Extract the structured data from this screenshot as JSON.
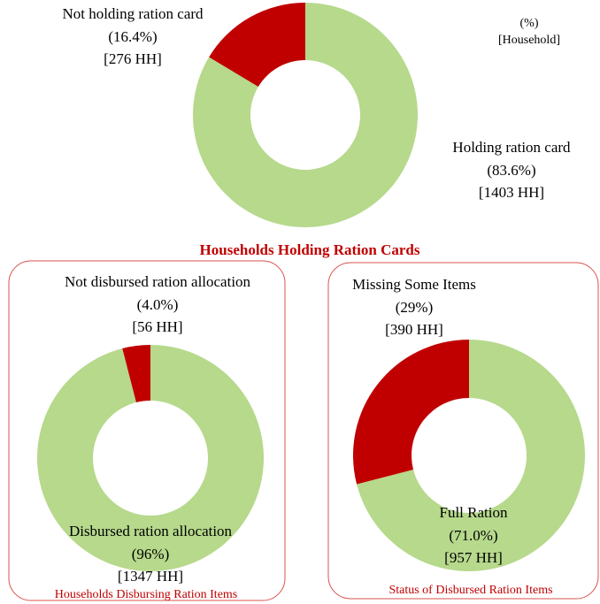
{
  "chart_data": [
    {
      "type": "donut",
      "title": "Households Holding Ration Cards",
      "unit_labels": [
        "(%)",
        "[Household]"
      ],
      "categories": [
        "Not holding ration card",
        "Holding ration card"
      ],
      "values": [
        16.4,
        83.6
      ],
      "value_labels": [
        "(16.4%)",
        "(83.6%)"
      ],
      "hh_labels": [
        "[276 HH]",
        "[1403 HH]"
      ],
      "colors": [
        "#c00000",
        "#b6d98c"
      ]
    },
    {
      "type": "donut",
      "title": "Households Disbursing Ration Items",
      "categories": [
        "Not disbursed ration allocation",
        "Disbursed ration allocation"
      ],
      "values": [
        4.0,
        96
      ],
      "value_labels": [
        "(4.0%)",
        "(96%)"
      ],
      "hh_labels": [
        "[56 HH]",
        "[1347 HH]"
      ],
      "colors": [
        "#c00000",
        "#b6d98c"
      ]
    },
    {
      "type": "donut",
      "title": "Status of Disbursed Ration Items",
      "categories": [
        "Missing Some Items",
        "Full Ration"
      ],
      "values": [
        29,
        71.0
      ],
      "value_labels": [
        "(29%)",
        "(71.0%)"
      ],
      "hh_labels": [
        "[390 HH]",
        "[957 HH]"
      ],
      "colors": [
        "#c00000",
        "#b6d98c"
      ]
    }
  ]
}
